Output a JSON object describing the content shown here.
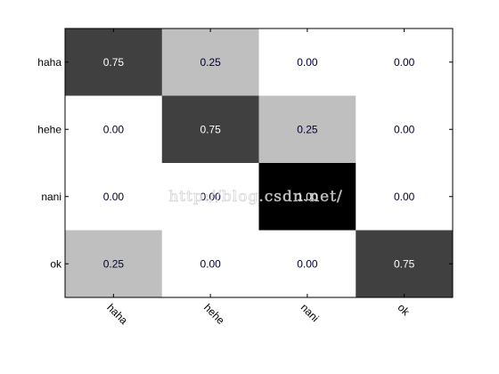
{
  "chart_data": {
    "type": "heatmap",
    "title": "",
    "xlabel": "",
    "ylabel": "",
    "x_labels": [
      "haha",
      "hehe",
      "nani",
      "ok"
    ],
    "y_labels": [
      "haha",
      "hehe",
      "nani",
      "ok"
    ],
    "values": [
      [
        0.75,
        0.25,
        0.0,
        0.0
      ],
      [
        0.0,
        0.75,
        0.25,
        0.0
      ],
      [
        0.0,
        0.0,
        1.0,
        0.0
      ],
      [
        0.25,
        0.0,
        0.0,
        0.75
      ]
    ],
    "value_format": "0.00",
    "colormap": "gray_reversed",
    "color_low": "#ffffff",
    "color_high": "#000000",
    "x_tick_rotation_deg": 45,
    "grid": false,
    "legend": "none"
  },
  "watermark": {
    "text": "http://blog.csdn.net/"
  }
}
